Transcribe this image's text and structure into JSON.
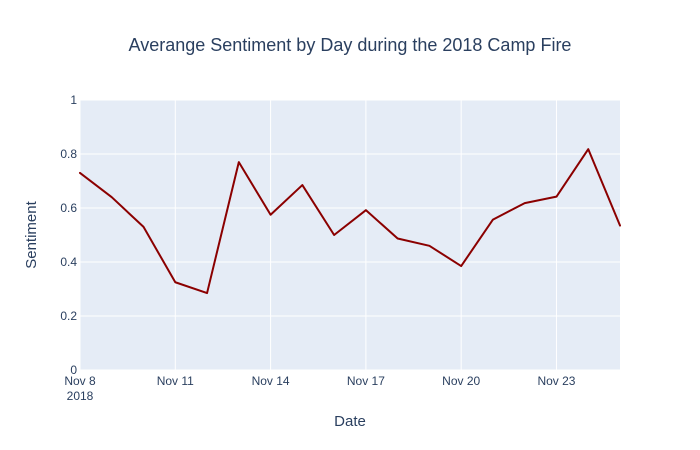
{
  "chart_data": {
    "type": "line",
    "title": "Averange Sentiment by Day during the 2018 Camp Fire",
    "xlabel": "Date",
    "ylabel": "Sentiment",
    "ylim": [
      0,
      1
    ],
    "xlim": [
      "2018-11-08",
      "2018-11-25"
    ],
    "grid": true,
    "x_tick_labels": [
      {
        "value": "2018-11-08",
        "label": "Nov 8",
        "sublabel": "2018"
      },
      {
        "value": "2018-11-11",
        "label": "Nov 11"
      },
      {
        "value": "2018-11-14",
        "label": "Nov 14"
      },
      {
        "value": "2018-11-17",
        "label": "Nov 17"
      },
      {
        "value": "2018-11-20",
        "label": "Nov 20"
      },
      {
        "value": "2018-11-23",
        "label": "Nov 23"
      }
    ],
    "y_tick_labels": [
      {
        "value": 0,
        "label": "0"
      },
      {
        "value": 0.2,
        "label": "0.2"
      },
      {
        "value": 0.4,
        "label": "0.4"
      },
      {
        "value": 0.6,
        "label": "0.6"
      },
      {
        "value": 0.8,
        "label": "0.8"
      },
      {
        "value": 1,
        "label": "1"
      }
    ],
    "series": [
      {
        "color": "#8b0000",
        "x": [
          "2018-11-08",
          "2018-11-09",
          "2018-11-10",
          "2018-11-11",
          "2018-11-12",
          "2018-11-13",
          "2018-11-14",
          "2018-11-15",
          "2018-11-16",
          "2018-11-17",
          "2018-11-18",
          "2018-11-19",
          "2018-11-20",
          "2018-11-21",
          "2018-11-22",
          "2018-11-23",
          "2018-11-24",
          "2018-11-25"
        ],
        "y": [
          0.73,
          0.64,
          0.53,
          0.325,
          0.285,
          0.77,
          0.575,
          0.685,
          0.5,
          0.592,
          0.487,
          0.46,
          0.385,
          0.557,
          0.618,
          0.642,
          0.818,
          0.535
        ]
      }
    ]
  },
  "colors": {
    "plot_bg": "#e5ecf6",
    "grid": "#ffffff",
    "text": "#2a3f5f"
  }
}
